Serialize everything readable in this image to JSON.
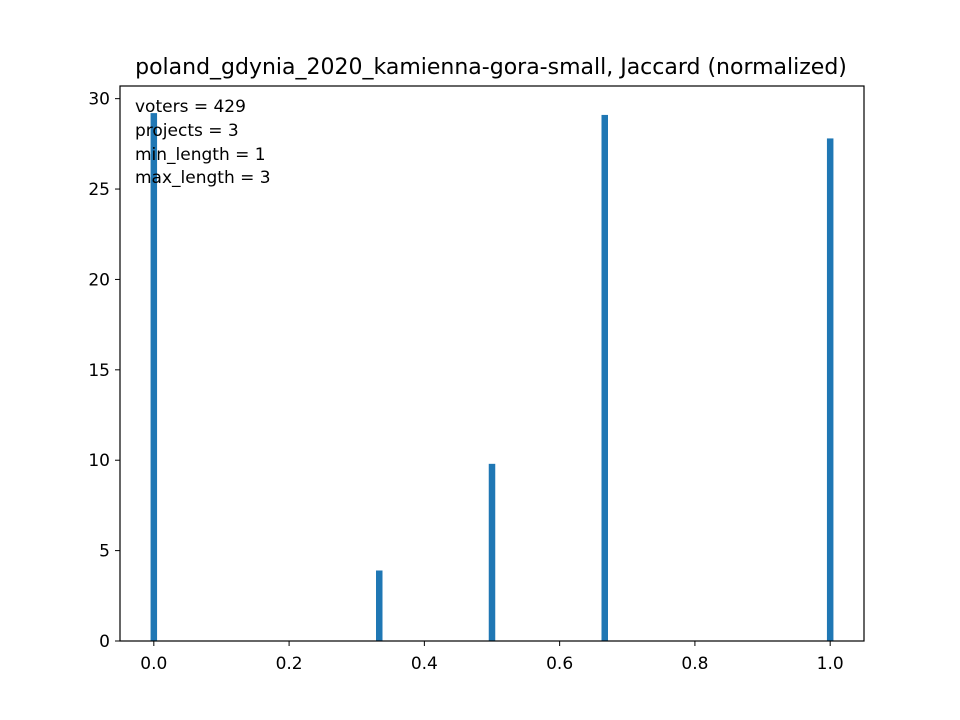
{
  "chart_data": {
    "type": "bar",
    "title": "poland_gdynia_2020_kamienna-gora-small, Jaccard (normalized)",
    "xlabel": "",
    "ylabel": "",
    "x": [
      0.0,
      0.3333,
      0.5,
      0.6667,
      1.0
    ],
    "values": [
      29.2,
      3.9,
      9.8,
      29.1,
      27.8
    ],
    "bar_color": "#1f77b4",
    "xlim": [
      -0.05,
      1.05
    ],
    "ylim": [
      0,
      30.7
    ],
    "xticks": [
      0.0,
      0.2,
      0.4,
      0.6,
      0.8,
      1.0
    ],
    "xtick_labels": [
      "0.0",
      "0.2",
      "0.4",
      "0.6",
      "0.8",
      "1.0"
    ],
    "yticks": [
      0,
      5,
      10,
      15,
      20,
      25,
      30
    ],
    "ytick_labels": [
      "0",
      "5",
      "10",
      "15",
      "20",
      "25",
      "30"
    ],
    "grid": false,
    "annotations": [
      "voters = 429",
      "projects = 3",
      "min_length = 1",
      "max_length = 3"
    ]
  }
}
